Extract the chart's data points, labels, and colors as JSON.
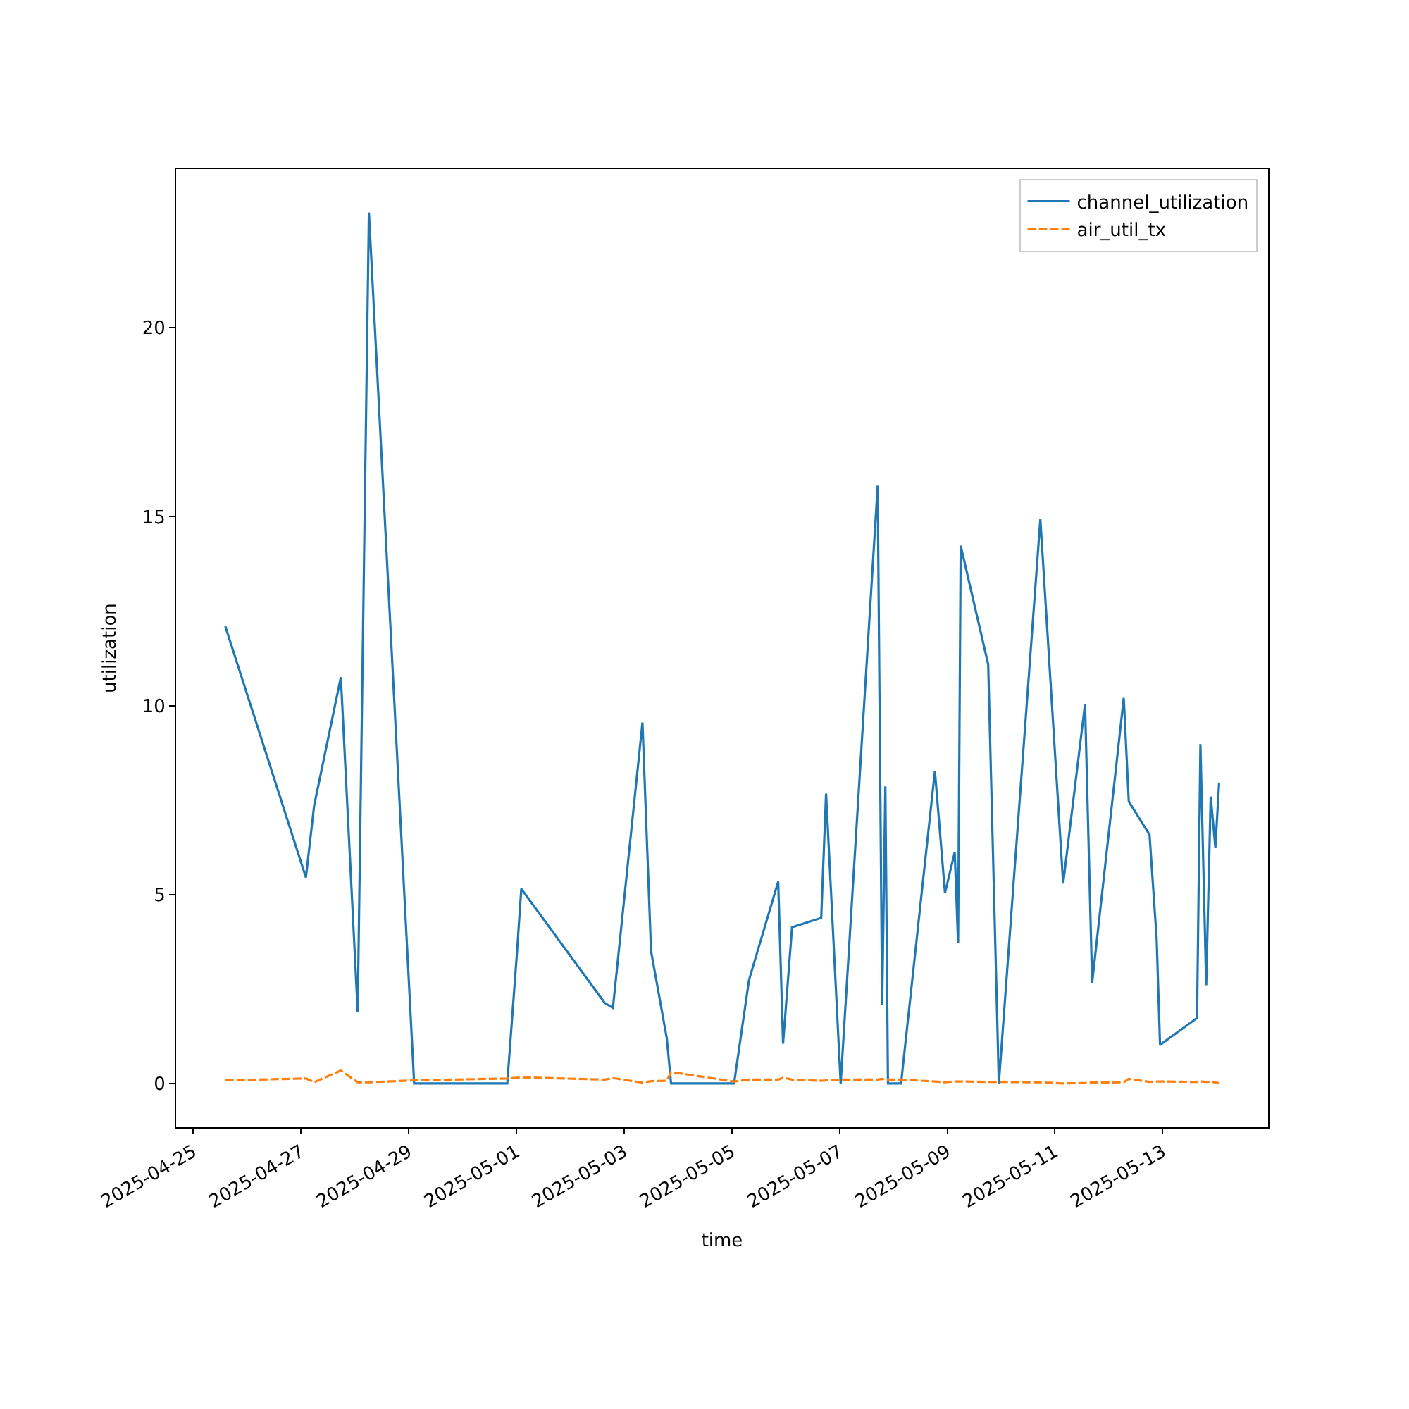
{
  "chart_data": {
    "type": "line",
    "xlabel": "time",
    "ylabel": "utilization",
    "x": [
      "2025-04-25T14:15",
      "2025-04-27T02:10",
      "2025-04-27T05:50",
      "2025-04-27T17:45",
      "2025-04-28T01:15",
      "2025-04-28T06:15",
      "2025-04-29T02:25",
      "2025-04-30T19:55",
      "2025-05-01T00:15",
      "2025-05-01T02:10",
      "2025-05-02T15:20",
      "2025-05-02T19:00",
      "2025-05-03T08:10",
      "2025-05-03T12:00",
      "2025-05-03T19:00",
      "2025-05-03T20:55",
      "2025-05-05T01:00",
      "2025-05-05T07:40",
      "2025-05-05T20:40",
      "2025-05-05T22:50",
      "2025-05-06T02:50",
      "2025-05-06T15:50",
      "2025-05-06T18:00",
      "2025-05-07T00:30",
      "2025-05-07T17:00",
      "2025-05-07T19:00",
      "2025-05-07T20:25",
      "2025-05-07T21:35",
      "2025-05-08T03:25",
      "2025-05-08T18:30",
      "2025-05-08T23:00",
      "2025-05-09T03:20",
      "2025-05-09T04:50",
      "2025-05-09T06:00",
      "2025-05-09T18:15",
      "2025-05-09T23:00",
      "2025-05-10T17:30",
      "2025-05-11T03:40",
      "2025-05-11T13:25",
      "2025-05-11T16:35",
      "2025-05-12T06:40",
      "2025-05-12T08:55",
      "2025-05-12T18:10",
      "2025-05-12T21:20",
      "2025-05-12T22:50",
      "2025-05-13T15:20",
      "2025-05-13T16:50",
      "2025-05-13T19:25",
      "2025-05-13T21:25",
      "2025-05-13T23:30",
      "2025-05-14T01:10"
    ],
    "series": [
      {
        "name": "channel_utilization",
        "color": "#1f77b4",
        "line_style": "solid",
        "values": [
          12.1,
          5.45,
          7.35,
          10.75,
          1.9,
          23.05,
          0,
          0,
          3.47,
          5.15,
          2.13,
          2.0,
          9.55,
          3.5,
          1.2,
          0,
          0,
          2.74,
          5.34,
          1.05,
          4.13,
          4.38,
          7.67,
          0,
          15.82,
          2.08,
          7.86,
          0,
          0,
          8.27,
          5.04,
          6.12,
          3.72,
          14.23,
          11.09,
          0,
          14.93,
          5.29,
          10.04,
          2.66,
          10.2,
          7.46,
          6.58,
          3.82,
          1.02,
          1.73,
          8.98,
          2.6,
          7.59,
          6.24,
          7.96
        ]
      },
      {
        "name": "air_util_tx",
        "color": "#ff7f0e",
        "line_style": "dashed",
        "values": [
          0.08,
          0.13,
          0.03,
          0.34,
          0.03,
          0.03,
          0.08,
          0.13,
          0.15,
          0.16,
          0.1,
          0.14,
          0.02,
          0.06,
          0.07,
          0.3,
          0.05,
          0.1,
          0.1,
          0.15,
          0.1,
          0.07,
          0.08,
          0.1,
          0.1,
          0.12,
          0.1,
          0.1,
          0.1,
          0.05,
          0.03,
          0.05,
          0.05,
          0.05,
          0.04,
          0.04,
          0.03,
          0.0,
          0.01,
          0.02,
          0.03,
          0.12,
          0.04,
          0.05,
          0.05,
          0.04,
          0.05,
          0.04,
          0.04,
          0.03,
          0.0
        ]
      }
    ],
    "xlim": [
      "2025-04-24T16:20",
      "2025-05-14T23:00"
    ],
    "xticks": [
      "2025-04-25",
      "2025-04-27",
      "2025-04-29",
      "2025-05-01",
      "2025-05-03",
      "2025-05-05",
      "2025-05-07",
      "2025-05-09",
      "2025-05-11",
      "2025-05-13"
    ],
    "ylim": [
      -1.16,
      24.2
    ],
    "yticks": [
      0,
      5,
      10,
      15,
      20
    ],
    "legend": "top right",
    "marker": "none"
  }
}
